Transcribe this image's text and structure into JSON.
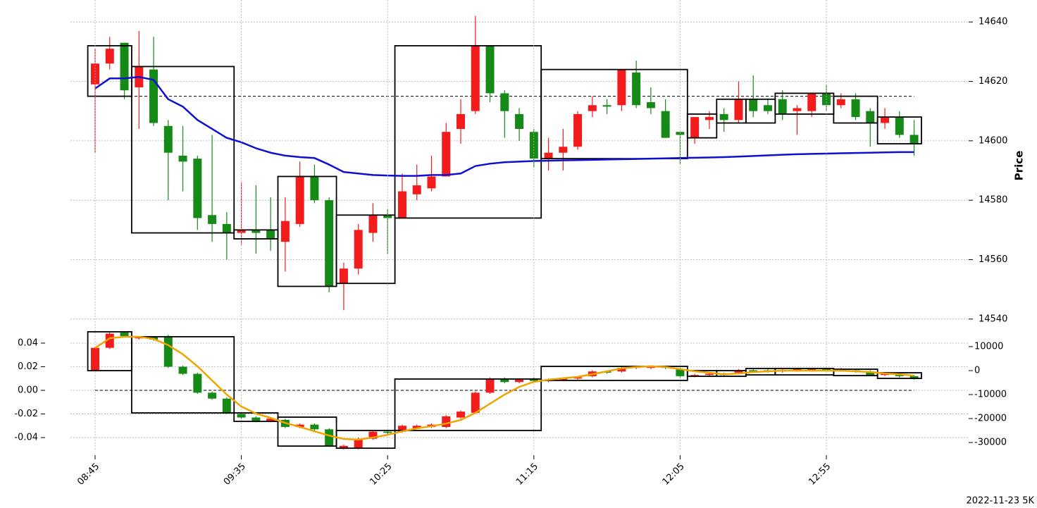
{
  "chart_data": [
    {
      "type": "candlestick",
      "ylabel": "Price",
      "yaxis_side": "right",
      "grid": true,
      "up_color": "#f21c1c",
      "down_color": "#168a16",
      "ylim": [
        14538.3,
        14645.5
      ],
      "yticks": [
        14540,
        14560,
        14580,
        14600,
        14620,
        14640
      ],
      "open": [
        14619,
        14626,
        14633,
        14618,
        14624,
        14605,
        14595,
        14594,
        14575,
        14572,
        14569,
        14570,
        14570,
        14566,
        14572,
        14588,
        14580,
        14552,
        14557,
        14569,
        14575,
        14574,
        14582,
        14584,
        14588,
        14604,
        14610,
        14632,
        14616,
        14609,
        14603,
        14594,
        14596,
        14598,
        14610,
        14612,
        14612,
        14623,
        14613,
        14610,
        14603,
        14601,
        14607,
        14609,
        14607,
        14614,
        14612,
        14614,
        14610,
        14610,
        14616,
        14612,
        14614,
        14610,
        14606,
        14608,
        14602
      ],
      "high": [
        14631,
        14635,
        14633,
        14637,
        14635,
        14607,
        14605,
        14595,
        14602,
        14576,
        14586,
        14585,
        14581,
        14581,
        14593,
        14592,
        14581,
        14559,
        14572,
        14579,
        14577,
        14589,
        14592,
        14595,
        14606,
        14614,
        14642,
        14632,
        14617,
        14611,
        14604,
        14601,
        14604,
        14610,
        14615,
        14614,
        14624,
        14627,
        14618,
        14614,
        14603,
        14608,
        14610,
        14611,
        14620,
        14622,
        14614,
        14617,
        14612,
        14616,
        14619,
        14616,
        14616,
        14611,
        14611,
        14610,
        14607
      ],
      "low": [
        14596,
        14624,
        14614,
        14604,
        14605,
        14580,
        14583,
        14570,
        14566,
        14560,
        14565,
        14562,
        14563,
        14556,
        14571,
        14579,
        14549,
        14543,
        14555,
        14566,
        14562,
        14574,
        14580,
        14583,
        14588,
        14599,
        14609,
        14613,
        14601,
        14600,
        14591,
        14590,
        14590,
        14597,
        14608,
        14609,
        14610,
        14611,
        14609,
        14601,
        14592,
        14599,
        14604,
        14603,
        14606,
        14608,
        14609,
        14607,
        14602,
        14608,
        14610,
        14611,
        14607,
        14598,
        14604,
        14601,
        14595
      ],
      "close": [
        14626,
        14631,
        14617,
        14625,
        14606,
        14596,
        14593,
        14574,
        14572,
        14569,
        14570,
        14569,
        14567,
        14573,
        14588,
        14580,
        14551,
        14557,
        14570,
        14575,
        14574,
        14583,
        14585,
        14588,
        14603,
        14609,
        14632,
        14616,
        14610,
        14604,
        14594,
        14596,
        14598,
        14609,
        14612,
        14611.5,
        14624,
        14612,
        14611,
        14601,
        14602,
        14608,
        14608,
        14607,
        14614,
        14610,
        14610,
        14609,
        14611,
        14616,
        14612,
        14614,
        14608,
        14606,
        14608,
        14602,
        14599
      ],
      "series": [
        {
          "color": "#1010d0",
          "values": [
            14617.6,
            14621,
            14621,
            14621.5,
            14620.5,
            14614,
            14611.5,
            14607,
            14604,
            14601,
            14599.5,
            14597.5,
            14596,
            14595,
            14594.5,
            14594.2,
            14592,
            14589.5,
            14589,
            14588.5,
            14588.3,
            14588.2,
            14588.2,
            14588.5,
            14588.5,
            14589,
            14591.5,
            14592.3,
            14592.8,
            14593,
            14593.2,
            14593.3,
            14593.4,
            14593.5,
            14593.6,
            14593.7,
            14593.8,
            14593.9,
            14594,
            14594.1,
            14594.2,
            14594.3,
            14594.4,
            14594.5,
            14594.7,
            14594.9,
            14595.1,
            14595.3,
            14595.5,
            14595.6,
            14595.7,
            14595.8,
            14595.9,
            14596,
            14596.1,
            14596.2,
            14596.2
          ]
        }
      ],
      "boxes": [
        {
          "first": 0,
          "last": 2,
          "low": 14615,
          "high": 14632
        },
        {
          "first": 3,
          "last": 9,
          "low": 14569,
          "high": 14625
        },
        {
          "first": 10,
          "last": 12,
          "low": 14567,
          "high": 14570
        },
        {
          "first": 13,
          "last": 16,
          "low": 14551,
          "high": 14588
        },
        {
          "first": 17,
          "last": 20,
          "low": 14552,
          "high": 14575
        },
        {
          "first": 21,
          "last": 30,
          "low": 14574,
          "high": 14632
        },
        {
          "first": 31,
          "last": 40,
          "low": 14594,
          "high": 14624
        },
        {
          "first": 41,
          "last": 42,
          "low": 14601,
          "high": 14609
        },
        {
          "first": 43,
          "last": 44,
          "low": 14606,
          "high": 14614
        },
        {
          "first": 45,
          "last": 46,
          "low": 14606,
          "high": 14614
        },
        {
          "first": 47,
          "last": 50,
          "low": 14609,
          "high": 14616
        },
        {
          "first": 51,
          "last": 53,
          "low": 14606,
          "high": 14615
        },
        {
          "first": 54,
          "last": 56,
          "low": 14599,
          "high": 14608
        }
      ],
      "hline": 14615
    },
    {
      "type": "candlestick",
      "yaxis_side": "left",
      "grid": true,
      "caption": "2022-11-23 5K",
      "up_color": "#f21c1c",
      "down_color": "#168a16",
      "categories": [
        "08:45",
        null,
        null,
        null,
        null,
        null,
        null,
        null,
        null,
        null,
        "09:35",
        null,
        null,
        null,
        null,
        null,
        null,
        null,
        null,
        null,
        "10:25",
        null,
        null,
        null,
        null,
        null,
        null,
        null,
        null,
        null,
        "11:15",
        null,
        null,
        null,
        null,
        null,
        null,
        null,
        null,
        null,
        "12:05",
        null,
        null,
        null,
        null,
        null,
        null,
        null,
        null,
        null,
        "12:55",
        null,
        null,
        null,
        null,
        null,
        null
      ],
      "ylim": [
        -0.0513,
        0.0549
      ],
      "yticks": [
        -0.04,
        -0.02,
        {
          "value": 0,
          "label": "0.00"
        },
        0.02,
        0.04
      ],
      "y2lim": [
        -33500,
        18800
      ],
      "y2ticks": [
        -30000,
        -20000,
        -10000,
        0,
        10000
      ],
      "open": [
        0.017,
        0.036,
        0.049,
        0.044,
        0.045,
        0.046,
        0.02,
        0.014,
        -0.002,
        -0.007,
        -0.02,
        -0.023,
        -0.026,
        -0.025,
        -0.031,
        -0.029,
        -0.033,
        -0.049,
        -0.049,
        -0.041,
        -0.035,
        -0.035,
        -0.032,
        -0.031,
        -0.031,
        -0.023,
        -0.019,
        -0.002,
        0.01,
        0.007,
        0.01,
        0.008,
        0.009,
        0.01,
        0.012,
        0.016,
        0.016,
        0.019,
        0.019,
        0.02,
        0.018,
        0.012,
        0.013,
        0.014,
        0.015,
        0.017,
        0.017,
        0.016,
        0.017,
        0.017,
        0.018,
        0.017,
        0.017,
        0.016,
        0.013,
        0.013,
        0.012
      ],
      "high": [
        0.037,
        0.049,
        0.05,
        0.046,
        0.046,
        0.047,
        0.021,
        0.015,
        -0.001,
        -0.006,
        -0.019,
        -0.022,
        -0.023,
        -0.024,
        -0.028,
        -0.028,
        -0.032,
        -0.046,
        -0.04,
        -0.034,
        -0.034,
        -0.029,
        -0.029,
        -0.028,
        -0.021,
        -0.017,
        -0.001,
        0.011,
        0.011,
        0.01,
        0.011,
        0.01,
        0.011,
        0.012,
        0.017,
        0.017,
        0.02,
        0.021,
        0.021,
        0.021,
        0.019,
        0.014,
        0.015,
        0.015,
        0.018,
        0.018,
        0.018,
        0.018,
        0.019,
        0.019,
        0.019,
        0.019,
        0.018,
        0.017,
        0.015,
        0.014,
        0.013
      ],
      "low": [
        0.016,
        0.035,
        0.045,
        0.043,
        0.042,
        0.019,
        0.013,
        -0.003,
        -0.008,
        -0.02,
        -0.024,
        -0.027,
        -0.027,
        -0.032,
        -0.032,
        -0.034,
        -0.048,
        -0.05,
        -0.05,
        -0.042,
        -0.037,
        -0.036,
        -0.033,
        -0.032,
        -0.032,
        -0.024,
        -0.02,
        -0.003,
        0.006,
        0.006,
        0.007,
        0.007,
        0.008,
        0.009,
        0.011,
        0.014,
        0.015,
        0.018,
        0.018,
        0.018,
        0.011,
        0.011,
        0.012,
        0.012,
        0.014,
        0.015,
        0.015,
        0.015,
        0.016,
        0.016,
        0.016,
        0.016,
        0.015,
        0.012,
        0.012,
        0.011,
        0.009
      ],
      "close": [
        0.036,
        0.048,
        0.046,
        0.045,
        0.043,
        0.02,
        0.014,
        -0.002,
        -0.007,
        -0.019,
        -0.023,
        -0.026,
        -0.024,
        -0.031,
        -0.029,
        -0.033,
        -0.047,
        -0.047,
        -0.041,
        -0.035,
        -0.036,
        -0.03,
        -0.03,
        -0.029,
        -0.022,
        -0.018,
        -0.002,
        0.01,
        0.007,
        0.009,
        0.008,
        0.009,
        0.01,
        0.011,
        0.016,
        0.015,
        0.019,
        0.02,
        0.02,
        0.019,
        0.012,
        0.013,
        0.014,
        0.013,
        0.017,
        0.016,
        0.016,
        0.017,
        0.018,
        0.018,
        0.017,
        0.018,
        0.016,
        0.013,
        0.014,
        0.012,
        0.01
      ],
      "series": [
        {
          "color": "#f0a400",
          "axis": "y2",
          "values": [
            9400,
            13500,
            14100,
            14100,
            13200,
            10600,
            6800,
            1800,
            -4100,
            -10000,
            -15000,
            -17900,
            -19700,
            -21800,
            -23500,
            -25300,
            -27100,
            -28500,
            -28800,
            -27900,
            -26800,
            -25300,
            -24100,
            -23200,
            -22100,
            -20600,
            -17600,
            -13800,
            -10000,
            -6800,
            -4700,
            -3800,
            -3200,
            -2600,
            -1500,
            -300,
            900,
            1500,
            1800,
            1500,
            600,
            -300,
            -900,
            -1500,
            -1200,
            -600,
            -300,
            0,
            0,
            0,
            0,
            0,
            -300,
            -600,
            -1200,
            -1500,
            -2100
          ]
        }
      ],
      "boxes": [
        {
          "first": 0,
          "last": 2,
          "low": 0.0167,
          "high": 0.0496
        },
        {
          "first": 3,
          "last": 9,
          "low": -0.0191,
          "high": 0.0454
        },
        {
          "first": 10,
          "last": 12,
          "low": -0.0263,
          "high": -0.0191
        },
        {
          "first": 13,
          "last": 16,
          "low": -0.0472,
          "high": -0.0227
        },
        {
          "first": 17,
          "last": 20,
          "low": -0.049,
          "high": -0.034
        },
        {
          "first": 21,
          "last": 30,
          "low": -0.034,
          "high": 0.0096
        },
        {
          "first": 31,
          "last": 40,
          "low": 0.0084,
          "high": 0.0203
        },
        {
          "first": 41,
          "last": 42,
          "low": 0.0119,
          "high": 0.0167
        },
        {
          "first": 43,
          "last": 44,
          "low": 0.0119,
          "high": 0.0167
        },
        {
          "first": 45,
          "last": 46,
          "low": 0.0131,
          "high": 0.0185
        },
        {
          "first": 47,
          "last": 50,
          "low": 0.0131,
          "high": 0.0185
        },
        {
          "first": 51,
          "last": 53,
          "low": 0.0125,
          "high": 0.0179
        },
        {
          "first": 54,
          "last": 56,
          "low": 0.0101,
          "high": 0.0149
        }
      ],
      "hline": 0
    }
  ]
}
